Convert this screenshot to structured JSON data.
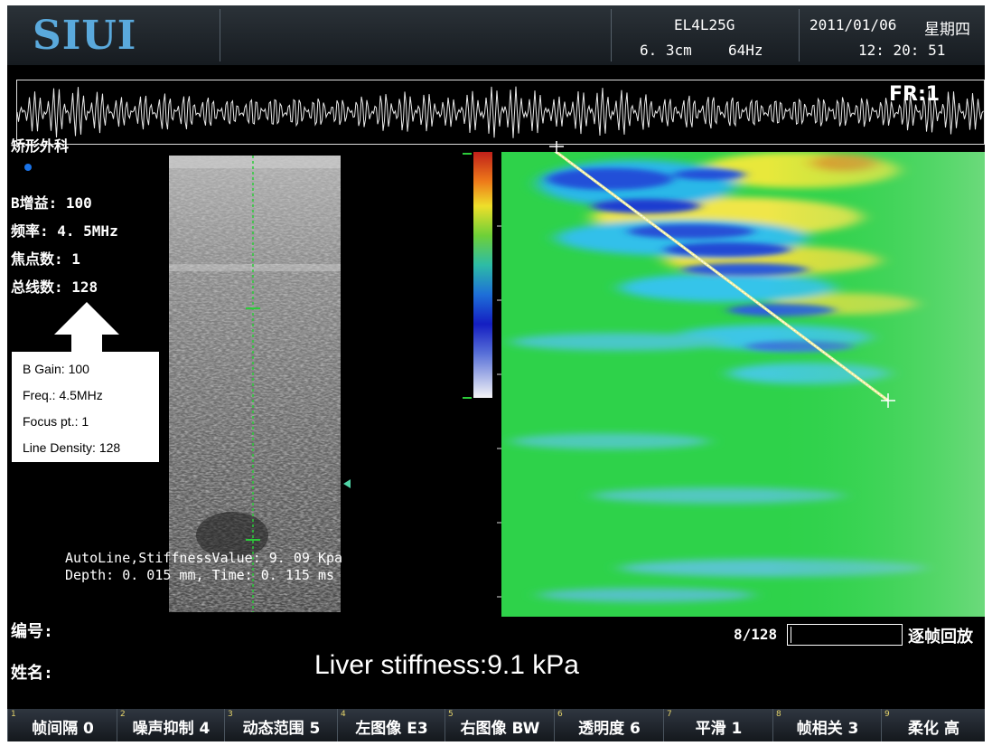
{
  "header": {
    "logo": "SIUI",
    "probe": "EL4L25G",
    "depth": "6. 3cm",
    "frame_rate": "64Hz",
    "date": "2011/01/06",
    "weekday": "星期四",
    "time": "12: 20: 51"
  },
  "waveform": {
    "fr_label": "FR:1"
  },
  "left_panel": {
    "preset": "矫形外科",
    "params": [
      {
        "label": "B增益",
        "value": "100",
        "text": "B增益: 100"
      },
      {
        "label": "频率",
        "value": "4. 5MHz",
        "text": "频率: 4. 5MHz"
      },
      {
        "label": "焦点数",
        "value": "1",
        "text": "焦点数: 1"
      },
      {
        "label": "总线数",
        "value": "128",
        "text": "总线数: 128"
      }
    ]
  },
  "callout": {
    "lines": [
      "B Gain: 100",
      "Freq.: 4.5MHz",
      "Focus pt.: 1",
      "Line Density: 128"
    ]
  },
  "measurement": {
    "line1": "AutoLine,StiffnessValue: 9. 09 Kpa",
    "line2": "Depth: 0. 015 mm, Time: 0. 115 ms",
    "stiffness_kpa": 9.09
  },
  "playback": {
    "frame": "8/128",
    "label": "逐帧回放",
    "frame_index": 8,
    "frame_total": 128
  },
  "patient": {
    "id_label": "编号:",
    "name_label": "姓名:"
  },
  "annotation": {
    "liver_stiffness": "Liver stiffness:9.1 kPa"
  },
  "colors": {
    "logo": "#5aa9dc",
    "elasto_bg": "#2ed24a",
    "softkey_number": "#e4d36a"
  },
  "softkeys": [
    {
      "num": "1",
      "label": "帧间隔 0"
    },
    {
      "num": "2",
      "label": "噪声抑制 4"
    },
    {
      "num": "3",
      "label": "动态范围 5"
    },
    {
      "num": "4",
      "label": "左图像 E3"
    },
    {
      "num": "5",
      "label": "右图像 BW"
    },
    {
      "num": "6",
      "label": "透明度 6"
    },
    {
      "num": "7",
      "label": "平滑 1"
    },
    {
      "num": "8",
      "label": "帧相关 3"
    },
    {
      "num": "9",
      "label": "柔化 高"
    }
  ]
}
